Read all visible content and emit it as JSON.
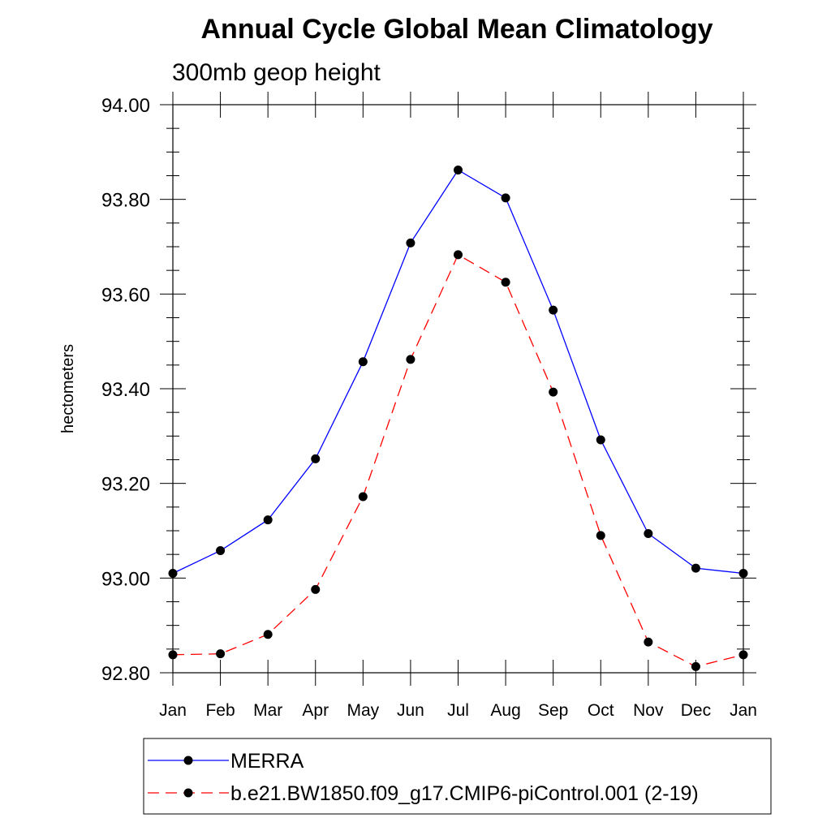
{
  "chart_data": {
    "type": "line",
    "title": "Annual Cycle Global Mean Climatology",
    "subtitle": "300mb geop height",
    "ylabel": "hectometers",
    "xlabel": "",
    "categories": [
      "Jan",
      "Feb",
      "Mar",
      "Apr",
      "May",
      "Jun",
      "Jul",
      "Aug",
      "Sep",
      "Oct",
      "Nov",
      "Dec",
      "Jan"
    ],
    "ylim": [
      92.8,
      94.0
    ],
    "yticks": [
      "92.80",
      "93.00",
      "93.20",
      "93.40",
      "93.60",
      "93.80",
      "94.00"
    ],
    "grid": false,
    "legend_position": "bottom",
    "series": [
      {
        "name": "MERRA",
        "color": "#0000ff",
        "dash": "solid",
        "marker": "filled-circle",
        "values": [
          93.01,
          93.058,
          93.123,
          93.252,
          93.457,
          93.708,
          93.862,
          93.803,
          93.566,
          93.292,
          93.094,
          93.021,
          93.01
        ]
      },
      {
        "name": "b.e21.BW1850.f09_g17.CMIP6-piControl.001 (2-19)",
        "color": "#ff0000",
        "dash": "dashed",
        "marker": "filled-circle",
        "values": [
          92.838,
          92.84,
          92.881,
          92.976,
          93.172,
          93.462,
          93.683,
          93.625,
          93.393,
          93.09,
          92.865,
          92.813,
          92.838
        ]
      }
    ]
  }
}
